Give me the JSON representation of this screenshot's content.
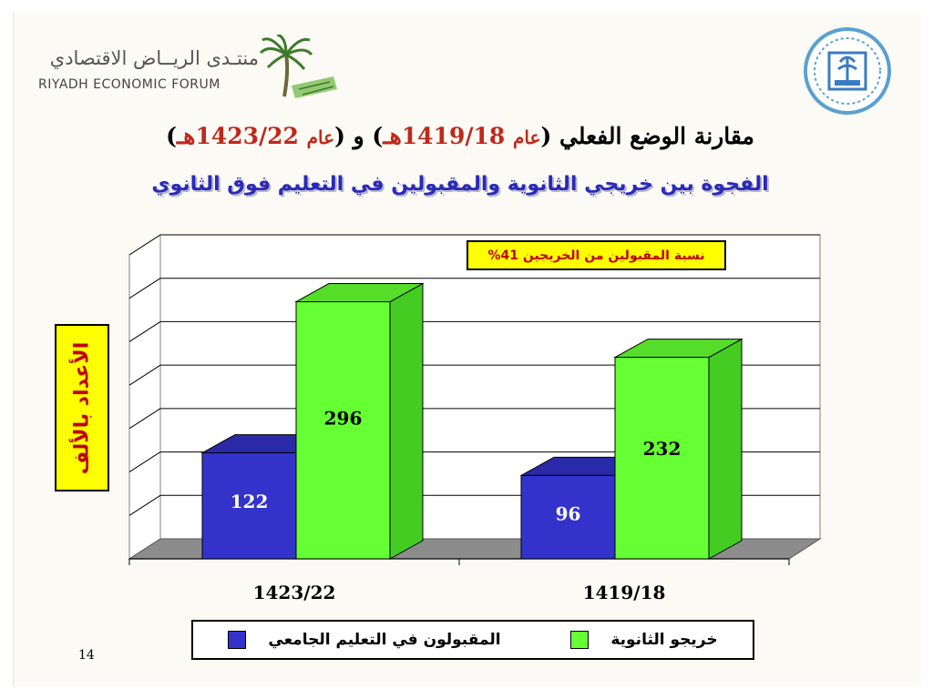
{
  "header": {
    "logo_arabic": "منتـدى الريــاض الاقتصادي",
    "logo_english": "RIYADH ECONOMIC FORUM"
  },
  "title": {
    "line1_part1": "مقارنة الوضع الفعلي",
    "line1_open1": "(",
    "line1_year_label1": "عام",
    "line1_year1": "1419/18هـ",
    "line1_close1": ")",
    "line1_and": " و ",
    "line1_open2": "(",
    "line1_year_label2": "عام",
    "line1_year2": "1423/22هـ",
    "line1_close2": ")",
    "line2": "الفجوة بين خريجي الثانوية والمقبولين في التعليم فوق الثانوي"
  },
  "chart_data": {
    "type": "bar",
    "categories": [
      "1423/22",
      "1419/18"
    ],
    "series": [
      {
        "name": "المقبولون في التعليم الجامعي",
        "values": [
          122,
          96
        ],
        "color": "#3333cc"
      },
      {
        "name": "خريجو الثانوية",
        "values": [
          296,
          232
        ],
        "color": "#66ff33"
      }
    ],
    "ylabel": "الأعداد بالألف",
    "ylim": [
      0,
      350
    ],
    "annotation": "نسبة المقبولين من الخريجين 41%",
    "grid": true,
    "legend_position": "bottom"
  },
  "page_number": "14"
}
